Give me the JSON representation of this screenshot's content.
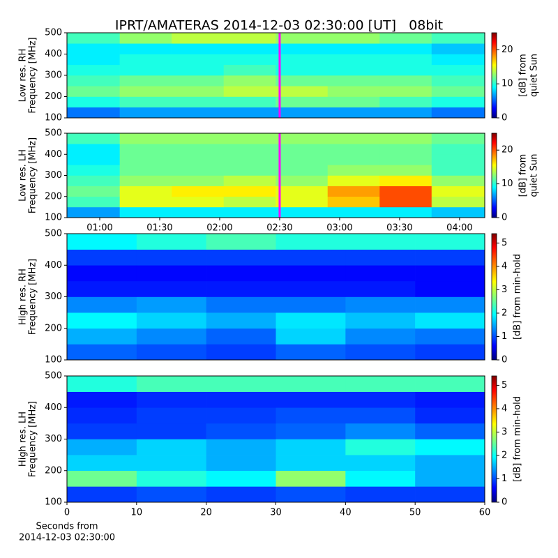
{
  "chart_data": [
    {
      "type": "heatmap",
      "title": "IPRT/AMATERAS 2014-12-03 02:30:00 [UT]   08bit",
      "ylabel": [
        "Low res. RH",
        "Frequency [MHz]"
      ],
      "x": [
        43.6,
        70,
        96,
        122,
        148,
        174,
        200,
        226,
        252.6
      ],
      "y": [
        100,
        150,
        200,
        250,
        300,
        350,
        400,
        450,
        500
      ],
      "z": [
        [
          6,
          7,
          7,
          7,
          7,
          7,
          7,
          6
        ],
        [
          10,
          11,
          11,
          11,
          12,
          12,
          11,
          10
        ],
        [
          12,
          13,
          13,
          14,
          14,
          13,
          13,
          12
        ],
        [
          11,
          12,
          12,
          13,
          12,
          12,
          12,
          11
        ],
        [
          10,
          10,
          10,
          11,
          10,
          10,
          10,
          10
        ],
        [
          9,
          10,
          10,
          10,
          10,
          10,
          10,
          9
        ],
        [
          9,
          9,
          9,
          9,
          9,
          9,
          9,
          8
        ],
        [
          11,
          13,
          14,
          14,
          13,
          13,
          12,
          11
        ]
      ],
      "xlim": [
        43.6,
        252.6
      ],
      "ylim": [
        100,
        500
      ],
      "yticks": [
        100,
        200,
        300,
        400,
        500
      ],
      "colormap": "jet",
      "colorbar": {
        "lim": [
          0,
          25
        ],
        "ticks": [
          0,
          10,
          20
        ],
        "label": [
          "[dB] from",
          "quiet Sun"
        ]
      },
      "vline": {
        "x": 150,
        "color": "#ff00ff"
      }
    },
    {
      "type": "heatmap",
      "ylabel": [
        "Low res. LH",
        "Frequency [MHz]"
      ],
      "x": [
        43.6,
        70,
        96,
        122,
        148,
        174,
        200,
        226,
        252.6
      ],
      "y": [
        100,
        150,
        200,
        250,
        300,
        350,
        400,
        450,
        500
      ],
      "z": [
        [
          7,
          9,
          9,
          9,
          9,
          9,
          9,
          8
        ],
        [
          11,
          15,
          15,
          14,
          15,
          17,
          20,
          14
        ],
        [
          12,
          15,
          16,
          16,
          15,
          18,
          20,
          15
        ],
        [
          11,
          13,
          13,
          14,
          13,
          15,
          16,
          13
        ],
        [
          10,
          12,
          12,
          12,
          12,
          13,
          13,
          11
        ],
        [
          9,
          12,
          12,
          12,
          12,
          12,
          12,
          11
        ],
        [
          9,
          12,
          12,
          12,
          12,
          12,
          12,
          11
        ],
        [
          11,
          13,
          13,
          13,
          13,
          13,
          13,
          12
        ]
      ],
      "xlim": [
        43.6,
        252.6
      ],
      "ylim": [
        100,
        500
      ],
      "yticks": [
        100,
        200,
        300,
        400,
        500
      ],
      "xticks": [
        {
          "value": 60,
          "label": "01:00"
        },
        {
          "value": 90,
          "label": "01:30"
        },
        {
          "value": 120,
          "label": "02:00"
        },
        {
          "value": 150,
          "label": "02:30"
        },
        {
          "value": 180,
          "label": "03:00"
        },
        {
          "value": 210,
          "label": "03:30"
        },
        {
          "value": 240,
          "label": "04:00"
        }
      ],
      "colormap": "jet",
      "colorbar": {
        "lim": [
          0,
          25
        ],
        "ticks": [
          0,
          10,
          20
        ],
        "label": [
          "[dB] from",
          "quiet Sun"
        ]
      },
      "vline": {
        "x": 150,
        "color": "#ff00ff"
      }
    },
    {
      "type": "heatmap",
      "ylabel": [
        "High res. RH",
        "Frequency [MHz]"
      ],
      "x": [
        0,
        10,
        20,
        30,
        40,
        50,
        60
      ],
      "y": [
        100,
        150,
        200,
        250,
        300,
        350,
        400,
        450,
        500
      ],
      "z": [
        [
          1.2,
          1.1,
          1.0,
          1.2,
          1.1,
          1.0
        ],
        [
          1.6,
          1.4,
          1.2,
          1.8,
          1.4,
          1.3
        ],
        [
          2.0,
          1.8,
          1.6,
          1.9,
          1.7,
          1.9
        ],
        [
          1.4,
          1.5,
          1.3,
          1.3,
          1.4,
          1.4
        ],
        [
          0.8,
          0.8,
          0.8,
          0.8,
          0.8,
          0.7
        ],
        [
          0.7,
          0.7,
          0.7,
          0.7,
          0.7,
          0.7
        ],
        [
          1.0,
          1.0,
          1.0,
          1.0,
          1.0,
          1.0
        ],
        [
          2.0,
          2.2,
          2.4,
          2.2,
          2.2,
          2.2
        ]
      ],
      "xlim": [
        0,
        60
      ],
      "ylim": [
        100,
        500
      ],
      "yticks": [
        100,
        200,
        300,
        400,
        500
      ],
      "colormap": "jet",
      "colorbar": {
        "lim": [
          0,
          5.4
        ],
        "ticks": [
          0,
          1,
          2,
          3,
          4,
          5
        ],
        "label": [
          "[dB] from min-hold"
        ]
      }
    },
    {
      "type": "heatmap",
      "ylabel": [
        "High res. LH",
        "Frequency [MHz]"
      ],
      "xlabel": [
        "Seconds from",
        "2014-12-03 02:30:00"
      ],
      "x": [
        0,
        10,
        20,
        30,
        40,
        50,
        60
      ],
      "y": [
        100,
        150,
        200,
        250,
        300,
        350,
        400,
        450,
        500
      ],
      "z": [
        [
          1.0,
          1.1,
          1.0,
          1.1,
          1.0,
          1.0
        ],
        [
          2.6,
          2.2,
          2.0,
          2.8,
          2.0,
          1.6
        ],
        [
          1.8,
          1.8,
          1.6,
          1.8,
          1.8,
          1.6
        ],
        [
          1.6,
          1.8,
          1.6,
          1.8,
          2.2,
          2.0
        ],
        [
          1.0,
          1.0,
          1.1,
          1.2,
          1.4,
          1.2
        ],
        [
          0.9,
          1.0,
          1.0,
          1.1,
          1.1,
          0.9
        ],
        [
          0.8,
          0.9,
          0.9,
          0.9,
          0.9,
          0.8
        ],
        [
          2.2,
          2.4,
          2.4,
          2.4,
          2.4,
          2.4
        ]
      ],
      "xlim": [
        0,
        60
      ],
      "ylim": [
        100,
        500
      ],
      "yticks": [
        100,
        200,
        300,
        400,
        500
      ],
      "xticks": [
        0,
        10,
        20,
        30,
        40,
        50,
        60
      ],
      "colormap": "jet",
      "colorbar": {
        "lim": [
          0,
          5.4
        ],
        "ticks": [
          0,
          1,
          2,
          3,
          4,
          5
        ],
        "label": [
          "[dB] from min-hold"
        ]
      }
    }
  ]
}
